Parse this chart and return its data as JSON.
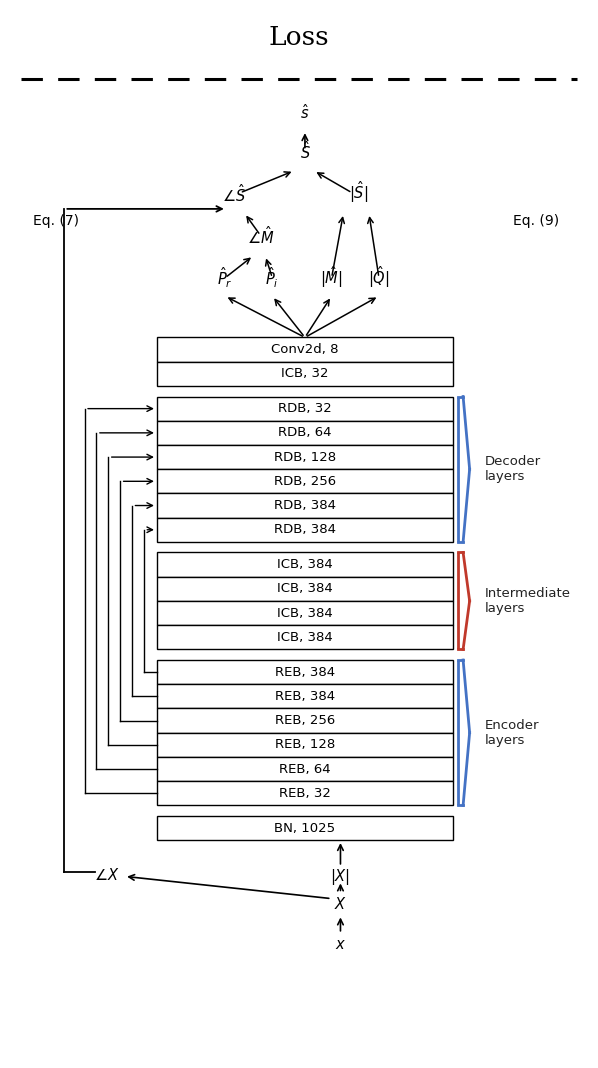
{
  "title": "Loss",
  "figsize": [
    5.98,
    10.68
  ],
  "dpi": 100,
  "bg_color": "#ffffff",
  "decoder_labels": [
    "RDB, 32",
    "RDB, 64",
    "RDB, 128",
    "RDB, 256",
    "RDB, 384",
    "RDB, 384"
  ],
  "intermediate_labels": [
    "ICB, 384",
    "ICB, 384",
    "ICB, 384",
    "ICB, 384"
  ],
  "encoder_labels": [
    "REB, 384",
    "REB, 384",
    "REB, 256",
    "REB, 128",
    "REB, 64",
    "REB, 32"
  ],
  "top_labels": [
    "Conv2d, 8",
    "ICB, 32"
  ],
  "bn_label": "BN, 1025",
  "decoder_bracket_color": "#4472C4",
  "intermediate_bracket_color": "#C0392B",
  "encoder_bracket_color": "#4472C4",
  "label_decoder": "Decoder\nlayers",
  "label_intermediate": "Intermediate\nlayers",
  "label_encoder": "Encoder\nlayers",
  "eq7_label": "Eq. (7)",
  "eq9_label": "Eq. (9)"
}
